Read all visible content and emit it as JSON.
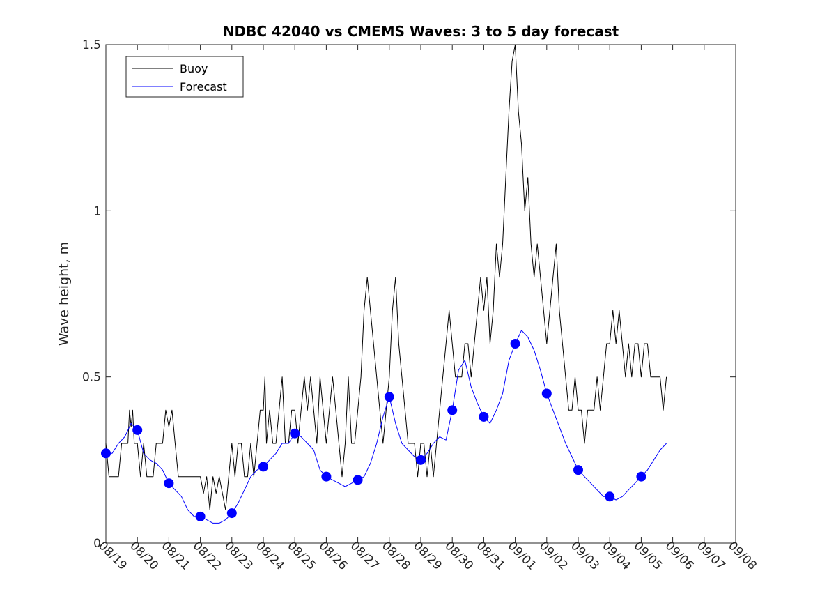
{
  "chart_data": {
    "type": "line",
    "title": "NDBC 42040 vs CMEMS Waves: 3 to 5 day forecast",
    "xlabel": "",
    "ylabel": "Wave height, m",
    "xlim": [
      0,
      20
    ],
    "ylim": [
      0,
      1.5
    ],
    "x_tick_labels": [
      "08/19",
      "08/20",
      "08/21",
      "08/22",
      "08/23",
      "08/24",
      "08/25",
      "08/26",
      "08/27",
      "08/28",
      "08/29",
      "08/30",
      "08/31",
      "09/01",
      "09/02",
      "09/03",
      "09/04",
      "09/05",
      "09/06",
      "09/07",
      "09/08"
    ],
    "y_tick_values": [
      0,
      0.5,
      1,
      1.5
    ],
    "y_tick_labels": [
      "0",
      "0.5",
      "1",
      "1.5"
    ],
    "legend": [
      "Buoy",
      "Forecast"
    ],
    "legend_position": "top-left",
    "colors": {
      "buoy": "#000000",
      "forecast": "#0000ff"
    },
    "series": [
      {
        "name": "Buoy",
        "color": "#000000",
        "points": [
          [
            0,
            0.3
          ],
          [
            0.1,
            0.2
          ],
          [
            0.4,
            0.2
          ],
          [
            0.5,
            0.3
          ],
          [
            0.7,
            0.3
          ],
          [
            0.75,
            0.4
          ],
          [
            0.8,
            0.35
          ],
          [
            0.85,
            0.4
          ],
          [
            0.9,
            0.3
          ],
          [
            1.0,
            0.3
          ],
          [
            1.1,
            0.2
          ],
          [
            1.2,
            0.3
          ],
          [
            1.3,
            0.2
          ],
          [
            1.5,
            0.2
          ],
          [
            1.6,
            0.3
          ],
          [
            1.8,
            0.3
          ],
          [
            1.9,
            0.4
          ],
          [
            2.0,
            0.35
          ],
          [
            2.1,
            0.4
          ],
          [
            2.2,
            0.3
          ],
          [
            2.3,
            0.2
          ],
          [
            2.5,
            0.2
          ],
          [
            2.6,
            0.2
          ],
          [
            3.0,
            0.2
          ],
          [
            3.1,
            0.15
          ],
          [
            3.2,
            0.2
          ],
          [
            3.3,
            0.1
          ],
          [
            3.4,
            0.2
          ],
          [
            3.5,
            0.15
          ],
          [
            3.6,
            0.2
          ],
          [
            3.8,
            0.1
          ],
          [
            3.9,
            0.2
          ],
          [
            4.0,
            0.3
          ],
          [
            4.1,
            0.2
          ],
          [
            4.2,
            0.3
          ],
          [
            4.3,
            0.3
          ],
          [
            4.4,
            0.2
          ],
          [
            4.5,
            0.2
          ],
          [
            4.6,
            0.3
          ],
          [
            4.7,
            0.2
          ],
          [
            4.8,
            0.3
          ],
          [
            4.9,
            0.4
          ],
          [
            5.0,
            0.4
          ],
          [
            5.05,
            0.5
          ],
          [
            5.1,
            0.3
          ],
          [
            5.2,
            0.4
          ],
          [
            5.3,
            0.3
          ],
          [
            5.4,
            0.3
          ],
          [
            5.5,
            0.4
          ],
          [
            5.6,
            0.5
          ],
          [
            5.7,
            0.3
          ],
          [
            5.8,
            0.3
          ],
          [
            5.9,
            0.4
          ],
          [
            6.0,
            0.4
          ],
          [
            6.1,
            0.3
          ],
          [
            6.2,
            0.4
          ],
          [
            6.3,
            0.5
          ],
          [
            6.4,
            0.4
          ],
          [
            6.5,
            0.5
          ],
          [
            6.6,
            0.4
          ],
          [
            6.7,
            0.3
          ],
          [
            6.8,
            0.5
          ],
          [
            6.9,
            0.4
          ],
          [
            7.0,
            0.3
          ],
          [
            7.1,
            0.4
          ],
          [
            7.2,
            0.5
          ],
          [
            7.3,
            0.4
          ],
          [
            7.4,
            0.3
          ],
          [
            7.5,
            0.2
          ],
          [
            7.6,
            0.3
          ],
          [
            7.7,
            0.5
          ],
          [
            7.8,
            0.3
          ],
          [
            7.9,
            0.3
          ],
          [
            8.0,
            0.4
          ],
          [
            8.1,
            0.5
          ],
          [
            8.2,
            0.7
          ],
          [
            8.3,
            0.8
          ],
          [
            8.4,
            0.7
          ],
          [
            8.5,
            0.6
          ],
          [
            8.6,
            0.5
          ],
          [
            8.7,
            0.4
          ],
          [
            8.8,
            0.3
          ],
          [
            8.9,
            0.4
          ],
          [
            9.0,
            0.5
          ],
          [
            9.1,
            0.7
          ],
          [
            9.2,
            0.8
          ],
          [
            9.3,
            0.6
          ],
          [
            9.4,
            0.5
          ],
          [
            9.5,
            0.4
          ],
          [
            9.6,
            0.3
          ],
          [
            9.7,
            0.3
          ],
          [
            9.8,
            0.3
          ],
          [
            9.9,
            0.2
          ],
          [
            10.0,
            0.3
          ],
          [
            10.1,
            0.3
          ],
          [
            10.2,
            0.2
          ],
          [
            10.3,
            0.3
          ],
          [
            10.4,
            0.2
          ],
          [
            10.5,
            0.3
          ],
          [
            10.6,
            0.4
          ],
          [
            10.7,
            0.5
          ],
          [
            10.8,
            0.6
          ],
          [
            10.9,
            0.7
          ],
          [
            11.0,
            0.6
          ],
          [
            11.1,
            0.5
          ],
          [
            11.2,
            0.5
          ],
          [
            11.3,
            0.5
          ],
          [
            11.4,
            0.6
          ],
          [
            11.5,
            0.6
          ],
          [
            11.6,
            0.5
          ],
          [
            11.7,
            0.6
          ],
          [
            11.8,
            0.7
          ],
          [
            11.9,
            0.8
          ],
          [
            12.0,
            0.7
          ],
          [
            12.1,
            0.8
          ],
          [
            12.2,
            0.6
          ],
          [
            12.3,
            0.7
          ],
          [
            12.4,
            0.9
          ],
          [
            12.5,
            0.8
          ],
          [
            12.6,
            0.9
          ],
          [
            12.7,
            1.1
          ],
          [
            12.8,
            1.3
          ],
          [
            12.9,
            1.45
          ],
          [
            13.0,
            1.5
          ],
          [
            13.1,
            1.3
          ],
          [
            13.2,
            1.2
          ],
          [
            13.3,
            1.0
          ],
          [
            13.4,
            1.1
          ],
          [
            13.5,
            0.9
          ],
          [
            13.6,
            0.8
          ],
          [
            13.7,
            0.9
          ],
          [
            13.8,
            0.8
          ],
          [
            13.9,
            0.7
          ],
          [
            14.0,
            0.6
          ],
          [
            14.1,
            0.7
          ],
          [
            14.2,
            0.8
          ],
          [
            14.3,
            0.9
          ],
          [
            14.4,
            0.7
          ],
          [
            14.5,
            0.6
          ],
          [
            14.6,
            0.5
          ],
          [
            14.7,
            0.4
          ],
          [
            14.8,
            0.4
          ],
          [
            14.9,
            0.5
          ],
          [
            15.0,
            0.4
          ],
          [
            15.1,
            0.4
          ],
          [
            15.2,
            0.3
          ],
          [
            15.3,
            0.4
          ],
          [
            15.4,
            0.4
          ],
          [
            15.5,
            0.4
          ],
          [
            15.6,
            0.5
          ],
          [
            15.7,
            0.4
          ],
          [
            15.8,
            0.5
          ],
          [
            15.9,
            0.6
          ],
          [
            16.0,
            0.6
          ],
          [
            16.1,
            0.7
          ],
          [
            16.2,
            0.6
          ],
          [
            16.3,
            0.7
          ],
          [
            16.4,
            0.6
          ],
          [
            16.5,
            0.5
          ],
          [
            16.6,
            0.6
          ],
          [
            16.7,
            0.5
          ],
          [
            16.8,
            0.6
          ],
          [
            16.9,
            0.6
          ],
          [
            17.0,
            0.5
          ],
          [
            17.1,
            0.6
          ],
          [
            17.2,
            0.6
          ],
          [
            17.3,
            0.5
          ],
          [
            17.4,
            0.5
          ],
          [
            17.5,
            0.5
          ],
          [
            17.6,
            0.5
          ],
          [
            17.7,
            0.4
          ],
          [
            17.8,
            0.5
          ]
        ]
      },
      {
        "name": "Forecast",
        "color": "#0000ff",
        "points": [
          [
            0,
            0.27
          ],
          [
            0.2,
            0.27
          ],
          [
            0.4,
            0.3
          ],
          [
            0.6,
            0.32
          ],
          [
            0.8,
            0.36
          ],
          [
            1.0,
            0.34
          ],
          [
            1.2,
            0.27
          ],
          [
            1.4,
            0.25
          ],
          [
            1.6,
            0.24
          ],
          [
            1.8,
            0.22
          ],
          [
            2.0,
            0.18
          ],
          [
            2.2,
            0.16
          ],
          [
            2.4,
            0.14
          ],
          [
            2.6,
            0.1
          ],
          [
            2.8,
            0.08
          ],
          [
            3.0,
            0.08
          ],
          [
            3.2,
            0.07
          ],
          [
            3.4,
            0.06
          ],
          [
            3.6,
            0.06
          ],
          [
            3.8,
            0.07
          ],
          [
            4.0,
            0.09
          ],
          [
            4.2,
            0.12
          ],
          [
            4.4,
            0.16
          ],
          [
            4.6,
            0.2
          ],
          [
            4.8,
            0.22
          ],
          [
            5.0,
            0.23
          ],
          [
            5.2,
            0.25
          ],
          [
            5.4,
            0.27
          ],
          [
            5.6,
            0.3
          ],
          [
            5.8,
            0.3
          ],
          [
            6.0,
            0.33
          ],
          [
            6.2,
            0.32
          ],
          [
            6.4,
            0.3
          ],
          [
            6.6,
            0.28
          ],
          [
            6.8,
            0.22
          ],
          [
            7.0,
            0.2
          ],
          [
            7.2,
            0.19
          ],
          [
            7.4,
            0.18
          ],
          [
            7.6,
            0.17
          ],
          [
            7.8,
            0.18
          ],
          [
            8.0,
            0.19
          ],
          [
            8.2,
            0.2
          ],
          [
            8.4,
            0.24
          ],
          [
            8.6,
            0.3
          ],
          [
            8.8,
            0.38
          ],
          [
            9.0,
            0.44
          ],
          [
            9.2,
            0.36
          ],
          [
            9.4,
            0.3
          ],
          [
            9.6,
            0.28
          ],
          [
            9.8,
            0.26
          ],
          [
            10.0,
            0.25
          ],
          [
            10.2,
            0.27
          ],
          [
            10.4,
            0.3
          ],
          [
            10.6,
            0.32
          ],
          [
            10.8,
            0.31
          ],
          [
            11.0,
            0.4
          ],
          [
            11.2,
            0.52
          ],
          [
            11.4,
            0.55
          ],
          [
            11.6,
            0.47
          ],
          [
            11.8,
            0.42
          ],
          [
            12.0,
            0.38
          ],
          [
            12.2,
            0.36
          ],
          [
            12.4,
            0.4
          ],
          [
            12.6,
            0.45
          ],
          [
            12.8,
            0.55
          ],
          [
            13.0,
            0.6
          ],
          [
            13.2,
            0.64
          ],
          [
            13.4,
            0.62
          ],
          [
            13.6,
            0.58
          ],
          [
            13.8,
            0.52
          ],
          [
            14.0,
            0.45
          ],
          [
            14.2,
            0.4
          ],
          [
            14.4,
            0.35
          ],
          [
            14.6,
            0.3
          ],
          [
            14.8,
            0.26
          ],
          [
            15.0,
            0.22
          ],
          [
            15.2,
            0.2
          ],
          [
            15.4,
            0.18
          ],
          [
            15.6,
            0.16
          ],
          [
            15.8,
            0.14
          ],
          [
            16.0,
            0.14
          ],
          [
            16.2,
            0.13
          ],
          [
            16.4,
            0.14
          ],
          [
            16.6,
            0.16
          ],
          [
            16.8,
            0.18
          ],
          [
            17.0,
            0.2
          ],
          [
            17.2,
            0.22
          ],
          [
            17.4,
            0.25
          ],
          [
            17.6,
            0.28
          ],
          [
            17.8,
            0.3
          ]
        ]
      }
    ]
  }
}
